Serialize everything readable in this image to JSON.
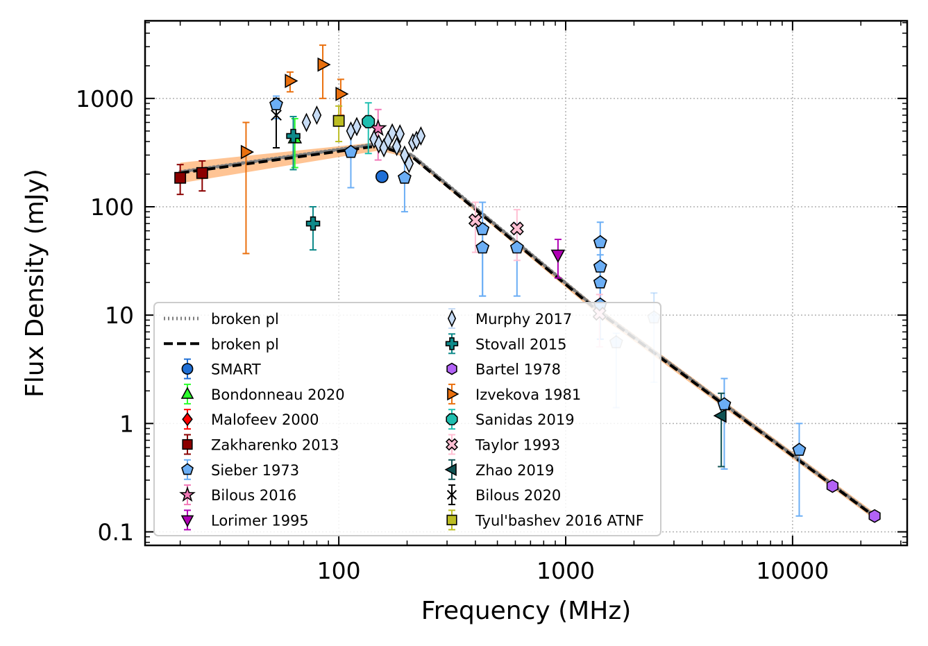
{
  "chart_data": {
    "type": "scatter",
    "x_scale": "log",
    "y_scale": "log",
    "xlabel": "Frequency (MHz)",
    "ylabel": "Flux Density (mJy)",
    "xlim": [
      14,
      32000
    ],
    "ylim": [
      0.075,
      5200
    ],
    "x_ticks": [
      {
        "value": 100,
        "label": "100"
      },
      {
        "value": 1000,
        "label": "1000"
      },
      {
        "value": 10000,
        "label": "10000"
      }
    ],
    "y_ticks": [
      {
        "value": 0.1,
        "label": "0.1"
      },
      {
        "value": 1,
        "label": "1"
      },
      {
        "value": 10,
        "label": "10"
      },
      {
        "value": 100,
        "label": "100"
      },
      {
        "value": 1000,
        "label": "1000"
      }
    ],
    "grid": true,
    "legend_position": "lower-left",
    "fit_lines": [
      {
        "name": "broken pl",
        "style": "dotted",
        "color": "#7f7f7f",
        "points": [
          [
            20,
            210
          ],
          [
            150,
            380
          ],
          [
            210,
            300
          ],
          [
            1400,
            11
          ],
          [
            23000,
            0.14
          ]
        ]
      },
      {
        "name": "broken pl",
        "style": "dashed",
        "color": "#000000",
        "points": [
          [
            20,
            205
          ],
          [
            150,
            365
          ],
          [
            210,
            290
          ],
          [
            1400,
            10.7
          ],
          [
            23000,
            0.138
          ]
        ]
      }
    ],
    "uncertainty_band": {
      "color": "#ffa55a",
      "upper": [
        [
          20,
          255
        ],
        [
          150,
          395
        ],
        [
          210,
          300
        ],
        [
          1400,
          11.6
        ],
        [
          23000,
          0.15
        ]
      ],
      "lower": [
        [
          20,
          165
        ],
        [
          150,
          330
        ],
        [
          210,
          280
        ],
        [
          1400,
          10.0
        ],
        [
          23000,
          0.13
        ]
      ]
    },
    "series": [
      {
        "name": "SMART",
        "marker": "circle",
        "color": "#1f6fd6",
        "points": [
          {
            "x": 155,
            "y": 190
          }
        ]
      },
      {
        "name": "Bondonneau 2020",
        "marker": "triangle-up",
        "color": "#2bff2b",
        "errcolor": "#2bff2b",
        "points": [
          {
            "x": 64,
            "y": 430,
            "lo": 230,
            "hi": 650
          }
        ]
      },
      {
        "name": "Malofeev 2000",
        "marker": "diamond",
        "color": "#ff0000",
        "errcolor": "#ff0000",
        "points": []
      },
      {
        "name": "Zakharenko 2013",
        "marker": "square",
        "color": "#8b0000",
        "errcolor": "#8b0000",
        "points": [
          {
            "x": 20,
            "y": 185,
            "lo": 130,
            "hi": 245
          },
          {
            "x": 25,
            "y": 205,
            "lo": 140,
            "hi": 265
          }
        ]
      },
      {
        "name": "Sieber 1973",
        "marker": "pentagon",
        "color": "#6baef5",
        "errcolor": "#6baef5",
        "points": [
          {
            "x": 53,
            "y": 880,
            "lo": 650,
            "hi": 1050
          },
          {
            "x": 113,
            "y": 320,
            "lo": 150,
            "hi": 490
          },
          {
            "x": 195,
            "y": 185,
            "lo": 90,
            "hi": 280
          },
          {
            "x": 430,
            "y": 42,
            "lo": 15,
            "hi": 70
          },
          {
            "x": 430,
            "y": 62,
            "lo": 15,
            "hi": 110
          },
          {
            "x": 610,
            "y": 42,
            "lo": 15,
            "hi": 70
          },
          {
            "x": 1420,
            "y": 47,
            "lo": 12,
            "hi": 72
          },
          {
            "x": 1420,
            "y": 28,
            "lo": 12,
            "hi": 36
          },
          {
            "x": 1420,
            "y": 20,
            "lo": 12,
            "hi": 30
          },
          {
            "x": 1420,
            "y": 12.5,
            "lo": 6,
            "hi": 19
          },
          {
            "x": 1670,
            "y": 5.6,
            "lo": 1.4,
            "hi": 6.8,
            "alpha": 0.4
          },
          {
            "x": 2450,
            "y": 9.5,
            "lo": 2.4,
            "hi": 16,
            "alpha": 0.35
          },
          {
            "x": 5000,
            "y": 1.5,
            "lo": 0.38,
            "hi": 2.6
          },
          {
            "x": 10700,
            "y": 0.57,
            "lo": 0.14,
            "hi": 1.0
          }
        ]
      },
      {
        "name": "Bilous 2016",
        "marker": "star",
        "color": "#f27ab8",
        "errcolor": "#f27ab8",
        "points": [
          {
            "x": 149,
            "y": 530,
            "lo": 270,
            "hi": 790
          }
        ]
      },
      {
        "name": "Lorimer 1995",
        "marker": "triangle-down",
        "color": "#b000b5",
        "errcolor": "#b000b5",
        "points": [
          {
            "x": 925,
            "y": 36,
            "lo": 22,
            "hi": 50
          }
        ]
      },
      {
        "name": "Murphy 2017",
        "marker": "thin-diamond",
        "color": "#c7dcf5",
        "errcolor": "#c7dcf5",
        "points": [
          {
            "x": 72,
            "y": 600
          },
          {
            "x": 80,
            "y": 700
          },
          {
            "x": 113,
            "y": 500
          },
          {
            "x": 120,
            "y": 550
          },
          {
            "x": 143,
            "y": 420
          },
          {
            "x": 150,
            "y": 380
          },
          {
            "x": 158,
            "y": 350
          },
          {
            "x": 165,
            "y": 410
          },
          {
            "x": 172,
            "y": 480
          },
          {
            "x": 180,
            "y": 360
          },
          {
            "x": 186,
            "y": 470
          },
          {
            "x": 195,
            "y": 300
          },
          {
            "x": 204,
            "y": 250
          },
          {
            "x": 212,
            "y": 390
          },
          {
            "x": 220,
            "y": 410
          },
          {
            "x": 230,
            "y": 450
          }
        ]
      },
      {
        "name": "Stovall 2015",
        "marker": "plus",
        "color": "#0e8a8a",
        "errcolor": "#0e8a8a",
        "points": [
          {
            "x": 63,
            "y": 450,
            "lo": 220,
            "hi": 680
          },
          {
            "x": 77,
            "y": 70,
            "lo": 40,
            "hi": 100
          }
        ]
      },
      {
        "name": "Bartel 1978",
        "marker": "hexagon",
        "color": "#b262f6",
        "points": [
          {
            "x": 15000,
            "y": 0.265
          },
          {
            "x": 23000,
            "y": 0.14
          }
        ]
      },
      {
        "name": "Izvekova 1981",
        "marker": "triangle-right",
        "color": "#ea700e",
        "errcolor": "#ea700e",
        "points": [
          {
            "x": 39,
            "y": 320,
            "lo": 37,
            "hi": 600
          },
          {
            "x": 61,
            "y": 1450,
            "lo": 1150,
            "hi": 1750
          },
          {
            "x": 85,
            "y": 2050,
            "lo": 1000,
            "hi": 3100
          },
          {
            "x": 102,
            "y": 1100,
            "lo": 700,
            "hi": 1500
          }
        ]
      },
      {
        "name": "Sanidas 2019",
        "marker": "octagon",
        "color": "#1fbfb0",
        "errcolor": "#1fbfb0",
        "points": [
          {
            "x": 135,
            "y": 610,
            "lo": 310,
            "hi": 910
          }
        ]
      },
      {
        "name": "Taylor 1993",
        "marker": "x-filled",
        "color": "#ffbfd3",
        "errcolor": "#ffbfd3",
        "points": [
          {
            "x": 400,
            "y": 75,
            "lo": 38,
            "hi": 110
          },
          {
            "x": 610,
            "y": 63,
            "lo": 32,
            "hi": 94
          },
          {
            "x": 1410,
            "y": 10.3,
            "lo": 5.1,
            "hi": 15.5
          }
        ]
      },
      {
        "name": "Zhao 2019",
        "marker": "triangle-left",
        "color": "#0f5252",
        "errcolor": "#0f5252",
        "points": [
          {
            "x": 4850,
            "y": 1.18,
            "lo": 0.4,
            "hi": 1.9
          }
        ]
      },
      {
        "name": "Bilous 2020",
        "marker": "x-thin",
        "color": "#000000",
        "errcolor": "#000000",
        "points": [
          {
            "x": 53,
            "y": 700,
            "lo": 350,
            "hi": 1000
          }
        ]
      },
      {
        "name": "Tyul'bashev 2016 ATNF",
        "marker": "square",
        "color": "#bcbd22",
        "errcolor": "#bcbd22",
        "points": [
          {
            "x": 100,
            "y": 620,
            "lo": 400,
            "hi": 850
          }
        ]
      }
    ]
  }
}
